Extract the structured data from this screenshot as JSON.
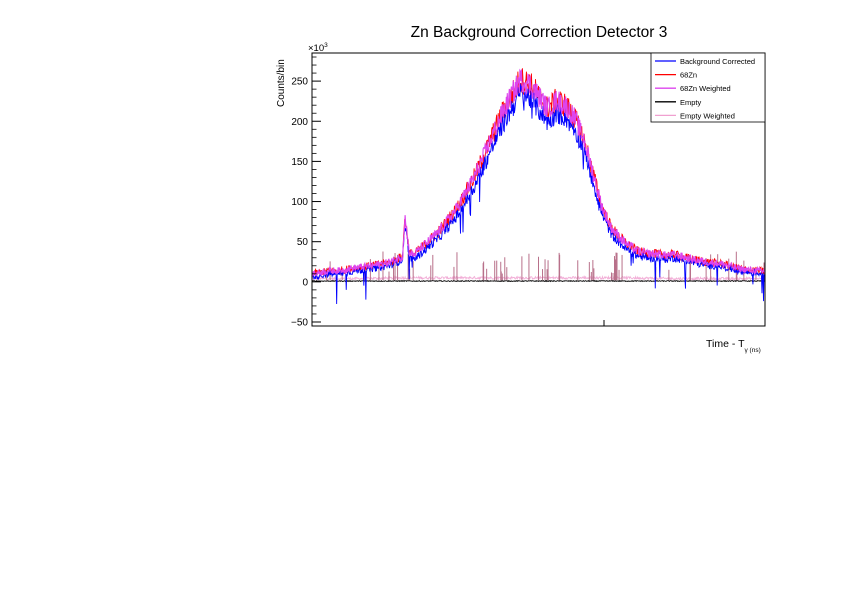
{
  "chart_data": {
    "type": "line",
    "title": "Zn Background Correction Detector 3",
    "xlabel": "Time - T",
    "xlabel_sub": "γ (ns)",
    "ylabel": "Counts/bin",
    "y_multiplier": "×10",
    "y_multiplier_exp": "3",
    "xlim": [
      0,
      1
    ],
    "ylim": [
      -55,
      285
    ],
    "y_ticks": [
      -50,
      0,
      50,
      100,
      150,
      200,
      250
    ],
    "y_tick_labels": [
      "−50",
      "0",
      "50",
      "100",
      "150",
      "200",
      "250"
    ],
    "x_tick_labels": [],
    "grid": false,
    "legend_position": "top-right",
    "series": [
      {
        "name": "Background Corrected",
        "color": "#0000ff",
        "x": [
          0,
          0.02,
          0.04,
          0.06,
          0.08,
          0.1,
          0.12,
          0.14,
          0.16,
          0.18,
          0.2,
          0.205,
          0.215,
          0.225,
          0.24,
          0.26,
          0.28,
          0.3,
          0.32,
          0.34,
          0.36,
          0.38,
          0.4,
          0.42,
          0.44,
          0.46,
          0.48,
          0.5,
          0.52,
          0.54,
          0.56,
          0.58,
          0.6,
          0.62,
          0.64,
          0.66,
          0.68,
          0.7,
          0.72,
          0.74,
          0.76,
          0.78,
          0.8,
          0.82,
          0.84,
          0.86,
          0.88,
          0.9,
          0.92,
          0.94,
          0.96,
          0.98,
          1.0
        ],
        "y": [
          6,
          8,
          10,
          10,
          12,
          14,
          15,
          17,
          19,
          22,
          28,
          75,
          30,
          28,
          35,
          45,
          55,
          68,
          82,
          100,
          120,
          145,
          170,
          195,
          215,
          235,
          230,
          215,
          200,
          210,
          205,
          190,
          165,
          125,
          85,
          60,
          48,
          38,
          32,
          30,
          30,
          28,
          30,
          27,
          24,
          22,
          20,
          20,
          17,
          14,
          12,
          11,
          10
        ]
      },
      {
        "name": "68Zn",
        "color": "#ff0000",
        "x": [
          0,
          0.02,
          0.04,
          0.06,
          0.08,
          0.1,
          0.12,
          0.14,
          0.16,
          0.18,
          0.2,
          0.205,
          0.215,
          0.225,
          0.24,
          0.26,
          0.28,
          0.3,
          0.32,
          0.34,
          0.36,
          0.38,
          0.4,
          0.42,
          0.44,
          0.46,
          0.48,
          0.5,
          0.52,
          0.54,
          0.56,
          0.58,
          0.6,
          0.62,
          0.64,
          0.66,
          0.68,
          0.7,
          0.72,
          0.74,
          0.76,
          0.78,
          0.8,
          0.82,
          0.84,
          0.86,
          0.88,
          0.9,
          0.92,
          0.94,
          0.96,
          0.98,
          1.0
        ],
        "y": [
          10,
          12,
          14,
          14,
          16,
          18,
          19,
          21,
          23,
          26,
          32,
          82,
          36,
          34,
          42,
          52,
          63,
          77,
          92,
          112,
          133,
          158,
          185,
          210,
          232,
          252,
          247,
          232,
          216,
          226,
          220,
          204,
          178,
          136,
          94,
          68,
          55,
          45,
          38,
          35,
          35,
          33,
          34,
          31,
          28,
          26,
          24,
          23,
          20,
          17,
          15,
          14,
          13
        ]
      },
      {
        "name": "68Zn Weighted",
        "color": "#dd44ee",
        "x": [
          0,
          0.02,
          0.04,
          0.06,
          0.08,
          0.1,
          0.12,
          0.14,
          0.16,
          0.18,
          0.2,
          0.205,
          0.215,
          0.225,
          0.24,
          0.26,
          0.28,
          0.3,
          0.32,
          0.34,
          0.36,
          0.38,
          0.4,
          0.42,
          0.44,
          0.46,
          0.48,
          0.5,
          0.52,
          0.54,
          0.56,
          0.58,
          0.6,
          0.62,
          0.64,
          0.66,
          0.68,
          0.7,
          0.72,
          0.74,
          0.76,
          0.78,
          0.8,
          0.82,
          0.84,
          0.86,
          0.88,
          0.9,
          0.92,
          0.94,
          0.96,
          0.98,
          1.0
        ],
        "y": [
          10,
          12,
          14,
          14,
          16,
          18,
          19,
          21,
          23,
          26,
          32,
          82,
          36,
          34,
          42,
          52,
          63,
          77,
          92,
          112,
          133,
          158,
          185,
          210,
          232,
          252,
          247,
          232,
          216,
          226,
          220,
          204,
          178,
          136,
          94,
          68,
          55,
          45,
          38,
          35,
          35,
          33,
          34,
          31,
          28,
          26,
          24,
          23,
          20,
          17,
          15,
          14,
          13
        ]
      },
      {
        "name": "Empty",
        "color": "#000000",
        "x": [
          0,
          0.1,
          0.2,
          0.3,
          0.4,
          0.5,
          0.6,
          0.7,
          0.8,
          0.9,
          1.0
        ],
        "y": [
          1,
          1,
          1,
          1,
          1,
          1,
          1,
          1,
          1,
          1,
          1
        ]
      },
      {
        "name": "Empty Weighted",
        "color": "#f0a0d0",
        "x": [
          0,
          0.1,
          0.2,
          0.3,
          0.4,
          0.5,
          0.6,
          0.7,
          0.8,
          0.9,
          1.0
        ],
        "y": [
          4,
          4,
          5,
          5,
          5,
          5,
          5,
          5,
          4,
          4,
          4
        ]
      }
    ]
  }
}
